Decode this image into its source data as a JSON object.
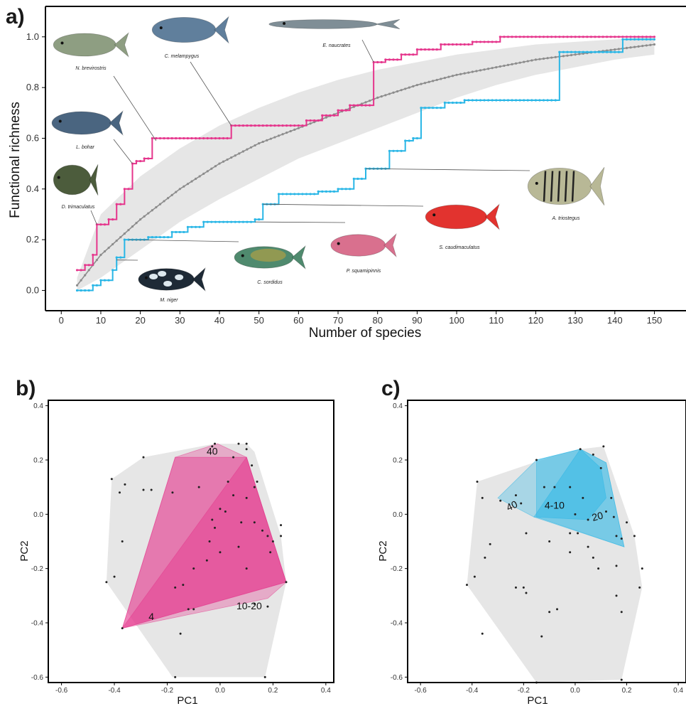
{
  "colors": {
    "pink": "#e5358c",
    "blue": "#29b6e6",
    "gray_line": "#8c8c8c",
    "envelope": "#e6e6e6",
    "hull_gray": "#e6e6e6"
  },
  "panel_labels": {
    "a": "a)",
    "b": "b)",
    "c": "c)"
  },
  "chart_data": [
    {
      "panel": "a",
      "type": "line",
      "xlabel": "Number of species",
      "ylabel": "Functional richness",
      "xlim": [
        -4,
        158
      ],
      "ylim": [
        -0.08,
        1.12
      ],
      "xticks": [
        0,
        10,
        20,
        30,
        40,
        50,
        60,
        70,
        80,
        90,
        100,
        110,
        120,
        130,
        140,
        150
      ],
      "yticks": [
        "0.0",
        "0.2",
        "0.4",
        "0.6",
        "0.8",
        "1.0"
      ],
      "series": [
        {
          "color": "#e5358c",
          "step_points": [
            [
              4,
              0.08
            ],
            [
              6,
              0.1
            ],
            [
              8,
              0.14
            ],
            [
              9,
              0.26
            ],
            [
              12,
              0.28
            ],
            [
              14,
              0.34
            ],
            [
              16,
              0.4
            ],
            [
              18,
              0.5
            ],
            [
              19,
              0.51
            ],
            [
              21,
              0.52
            ],
            [
              23,
              0.6
            ],
            [
              43,
              0.65
            ],
            [
              62,
              0.67
            ],
            [
              66,
              0.69
            ],
            [
              70,
              0.71
            ],
            [
              73,
              0.73
            ],
            [
              79,
              0.9
            ],
            [
              82,
              0.91
            ],
            [
              86,
              0.93
            ],
            [
              90,
              0.95
            ],
            [
              96,
              0.97
            ],
            [
              104,
              0.98
            ],
            [
              111,
              1.0
            ],
            [
              150,
              1.0
            ]
          ]
        },
        {
          "color": "#29b6e6",
          "step_points": [
            [
              4,
              0.0
            ],
            [
              8,
              0.02
            ],
            [
              10,
              0.04
            ],
            [
              13,
              0.08
            ],
            [
              14,
              0.13
            ],
            [
              16,
              0.2
            ],
            [
              22,
              0.21
            ],
            [
              28,
              0.23
            ],
            [
              32,
              0.25
            ],
            [
              36,
              0.27
            ],
            [
              49,
              0.28
            ],
            [
              51,
              0.34
            ],
            [
              55,
              0.38
            ],
            [
              65,
              0.39
            ],
            [
              70,
              0.4
            ],
            [
              74,
              0.44
            ],
            [
              77,
              0.48
            ],
            [
              83,
              0.55
            ],
            [
              87,
              0.59
            ],
            [
              89,
              0.6
            ],
            [
              91,
              0.72
            ],
            [
              97,
              0.74
            ],
            [
              102,
              0.75
            ],
            [
              126,
              0.94
            ],
            [
              142,
              0.99
            ],
            [
              150,
              0.99
            ]
          ]
        },
        {
          "color": "#8c8c8c",
          "curve_points": [
            [
              4,
              0.02
            ],
            [
              10,
              0.14
            ],
            [
              20,
              0.28
            ],
            [
              30,
              0.4
            ],
            [
              40,
              0.5
            ],
            [
              50,
              0.58
            ],
            [
              60,
              0.64
            ],
            [
              70,
              0.7
            ],
            [
              80,
              0.76
            ],
            [
              90,
              0.81
            ],
            [
              100,
              0.85
            ],
            [
              110,
              0.88
            ],
            [
              120,
              0.91
            ],
            [
              130,
              0.93
            ],
            [
              140,
              0.95
            ],
            [
              150,
              0.97
            ]
          ],
          "envelope_lower": [
            [
              4,
              0.0
            ],
            [
              10,
              0.05
            ],
            [
              20,
              0.16
            ],
            [
              30,
              0.27
            ],
            [
              40,
              0.36
            ],
            [
              50,
              0.44
            ],
            [
              60,
              0.52
            ],
            [
              70,
              0.58
            ],
            [
              80,
              0.64
            ],
            [
              90,
              0.7
            ],
            [
              100,
              0.76
            ],
            [
              110,
              0.81
            ],
            [
              120,
              0.85
            ],
            [
              130,
              0.88
            ],
            [
              140,
              0.91
            ],
            [
              150,
              0.93
            ]
          ],
          "envelope_upper": [
            [
              4,
              0.05
            ],
            [
              10,
              0.3
            ],
            [
              20,
              0.45
            ],
            [
              30,
              0.56
            ],
            [
              40,
              0.65
            ],
            [
              50,
              0.72
            ],
            [
              60,
              0.78
            ],
            [
              70,
              0.83
            ],
            [
              80,
              0.87
            ],
            [
              90,
              0.9
            ],
            [
              100,
              0.93
            ],
            [
              110,
              0.95
            ],
            [
              120,
              0.97
            ],
            [
              130,
              0.98
            ],
            [
              140,
              0.99
            ],
            [
              150,
              1.0
            ]
          ]
        }
      ],
      "annotations": [
        {
          "name": "N. brevirostris",
          "fish": "n-brevirostris",
          "color": "#8e9e82",
          "target": [
            24,
            0.59
          ]
        },
        {
          "name": "C. melampygus",
          "fish": "c-melampygus",
          "color": "#607f9c",
          "target": [
            43,
            0.65
          ]
        },
        {
          "name": "E. naucrates",
          "fish": "e-naucrates",
          "color": "#7f8e96",
          "target": [
            79,
            0.9
          ]
        },
        {
          "name": "L. bohar",
          "fish": "l-bohar",
          "color": "#4a6580",
          "target": [
            18,
            0.5
          ]
        },
        {
          "name": "D. trimaculatus",
          "fish": "d-trimaculatus",
          "color": "#4c5c3c",
          "target": [
            9,
            0.26
          ]
        },
        {
          "name": "M. niger",
          "fish": "m-niger",
          "color": "#1e2a36",
          "target": [
            14,
            0.12
          ]
        },
        {
          "name": "C. sordidus",
          "fish": "c-sordidus",
          "color": "#4f8a6e",
          "target": [
            17,
            0.2
          ]
        },
        {
          "name": "P. squamipinnis",
          "fish": "p-squamipinnis",
          "color": "#d9708e",
          "target": [
            49,
            0.27
          ]
        },
        {
          "name": "S. caudimaculatus",
          "fish": "s-caudimaculatus",
          "color": "#e2332f",
          "target": [
            51,
            0.34
          ]
        },
        {
          "name": "A. triostegus",
          "fish": "a-triostegus",
          "color": "#b8b896",
          "target": [
            77,
            0.48
          ]
        }
      ]
    },
    {
      "panel": "b",
      "type": "scatter",
      "xlabel": "PC1",
      "ylabel": "PC2",
      "xlim": [
        -0.65,
        0.43
      ],
      "ylim": [
        -0.62,
        0.42
      ],
      "xticks": [
        "-0.6",
        "-0.4",
        "-0.2",
        "0.0",
        "0.2",
        "0.4"
      ],
      "yticks": [
        "-0.6",
        "-0.4",
        "-0.2",
        "0.0",
        "0.2",
        "0.4"
      ],
      "outer_hull": [
        [
          -0.41,
          0.13
        ],
        [
          -0.29,
          0.21
        ],
        [
          -0.02,
          0.26
        ],
        [
          0.1,
          0.26
        ],
        [
          0.13,
          0.23
        ],
        [
          0.23,
          -0.08
        ],
        [
          0.25,
          -0.25
        ],
        [
          0.17,
          -0.6
        ],
        [
          -0.18,
          -0.6
        ],
        [
          -0.43,
          -0.25
        ]
      ],
      "hulls": [
        {
          "label": "40",
          "opacity": 0.55,
          "vertices": [
            [
              -0.37,
              -0.42
            ],
            [
              -0.17,
              0.21
            ],
            [
              -0.01,
              0.26
            ],
            [
              0.1,
              0.21
            ],
            [
              0.25,
              -0.25
            ],
            [
              0.18,
              -0.31
            ]
          ]
        },
        {
          "label": "10-20",
          "opacity": 0.7,
          "vertices": [
            [
              -0.37,
              -0.42
            ],
            [
              -0.17,
              0.21
            ],
            [
              0.1,
              0.21
            ],
            [
              0.25,
              -0.25
            ]
          ]
        },
        {
          "label": "4",
          "opacity": 0.75,
          "vertices": [
            [
              -0.37,
              -0.42
            ],
            [
              0.1,
              0.21
            ],
            [
              0.25,
              -0.25
            ]
          ]
        }
      ],
      "points": [
        [
          -0.41,
          0.13
        ],
        [
          -0.38,
          0.08
        ],
        [
          -0.36,
          0.11
        ],
        [
          -0.29,
          0.21
        ],
        [
          -0.29,
          0.09
        ],
        [
          -0.37,
          -0.1
        ],
        [
          -0.4,
          -0.23
        ],
        [
          -0.43,
          -0.25
        ],
        [
          -0.26,
          0.09
        ],
        [
          -0.18,
          0.08
        ],
        [
          -0.02,
          0.26
        ],
        [
          0.07,
          0.26
        ],
        [
          0.1,
          0.26
        ],
        [
          0.1,
          0.24
        ],
        [
          -0.03,
          0.25
        ],
        [
          0.05,
          0.21
        ],
        [
          0.12,
          0.18
        ],
        [
          0.14,
          0.12
        ],
        [
          0.13,
          0.1
        ],
        [
          0.1,
          0.06
        ],
        [
          0.05,
          0.07
        ],
        [
          0.02,
          0.01
        ],
        [
          -0.03,
          -0.02
        ],
        [
          -0.02,
          -0.05
        ],
        [
          -0.04,
          -0.1
        ],
        [
          0.08,
          -0.03
        ],
        [
          0.13,
          -0.03
        ],
        [
          0.16,
          -0.06
        ],
        [
          0.18,
          -0.08
        ],
        [
          0.2,
          -0.1
        ],
        [
          0.19,
          -0.14
        ],
        [
          0.23,
          -0.08
        ],
        [
          0.23,
          -0.04
        ],
        [
          0.1,
          -0.2
        ],
        [
          0.0,
          -0.14
        ],
        [
          -0.05,
          -0.17
        ],
        [
          -0.1,
          -0.2
        ],
        [
          -0.14,
          -0.26
        ],
        [
          -0.17,
          -0.27
        ],
        [
          -0.12,
          -0.35
        ],
        [
          -0.1,
          -0.35
        ],
        [
          -0.15,
          -0.44
        ],
        [
          0.18,
          -0.34
        ],
        [
          0.13,
          -0.33
        ],
        [
          0.25,
          -0.25
        ],
        [
          -0.37,
          -0.42
        ],
        [
          -0.17,
          -0.6
        ],
        [
          0.17,
          -0.6
        ],
        [
          0.0,
          0.02
        ],
        [
          0.07,
          -0.12
        ],
        [
          -0.08,
          0.1
        ],
        [
          0.03,
          0.12
        ]
      ]
    },
    {
      "panel": "c",
      "type": "scatter",
      "xlabel": "PC1",
      "ylabel": "PC2",
      "xlim": [
        -0.65,
        0.43
      ],
      "ylim": [
        -0.62,
        0.42
      ],
      "xticks": [
        "-0.6",
        "-0.4",
        "-0.2",
        "0.0",
        "0.2",
        "0.4"
      ],
      "yticks": [
        "-0.6",
        "-0.4",
        "-0.2",
        "0.0",
        "0.2",
        "0.4"
      ],
      "outer_hull": [
        [
          -0.38,
          0.12
        ],
        [
          -0.1,
          0.21
        ],
        [
          0.02,
          0.24
        ],
        [
          0.11,
          0.25
        ],
        [
          0.23,
          -0.08
        ],
        [
          0.26,
          -0.27
        ],
        [
          0.18,
          -0.61
        ],
        [
          -0.15,
          -0.62
        ],
        [
          -0.42,
          -0.26
        ]
      ],
      "hulls": [
        {
          "label": "40",
          "opacity": 0.55,
          "vertices": [
            [
              -0.3,
              0.06
            ],
            [
              -0.15,
              0.2
            ],
            [
              0.02,
              0.24
            ],
            [
              0.12,
              0.19
            ],
            [
              0.19,
              -0.12
            ],
            [
              -0.16,
              -0.01
            ]
          ]
        },
        {
          "label": "20",
          "opacity": 0.65,
          "vertices": [
            [
              -0.15,
              -0.01
            ],
            [
              -0.15,
              0.2
            ],
            [
              0.02,
              0.24
            ],
            [
              0.12,
              0.19
            ],
            [
              0.19,
              -0.12
            ]
          ]
        },
        {
          "label": "4-10",
          "opacity": 0.75,
          "vertices": [
            [
              -0.16,
              -0.01
            ],
            [
              0.02,
              0.24
            ],
            [
              0.1,
              0.17
            ],
            [
              0.12,
              0.06
            ],
            [
              0.05,
              -0.02
            ]
          ]
        }
      ],
      "points": [
        [
          -0.38,
          0.12
        ],
        [
          -0.36,
          0.06
        ],
        [
          -0.29,
          0.05
        ],
        [
          -0.23,
          0.07
        ],
        [
          -0.21,
          0.04
        ],
        [
          -0.15,
          0.2
        ],
        [
          -0.12,
          0.1
        ],
        [
          -0.08,
          0.1
        ],
        [
          0.02,
          0.24
        ],
        [
          0.07,
          0.22
        ],
        [
          0.11,
          0.25
        ],
        [
          0.1,
          0.17
        ],
        [
          0.14,
          0.06
        ],
        [
          0.12,
          0.01
        ],
        [
          0.15,
          -0.01
        ],
        [
          0.16,
          -0.08
        ],
        [
          0.18,
          -0.09
        ],
        [
          0.23,
          -0.08
        ],
        [
          0.2,
          -0.03
        ],
        [
          0.05,
          -0.02
        ],
        [
          0.01,
          -0.07
        ],
        [
          -0.02,
          -0.07
        ],
        [
          -0.1,
          -0.1
        ],
        [
          -0.19,
          -0.07
        ],
        [
          -0.33,
          -0.11
        ],
        [
          -0.35,
          -0.16
        ],
        [
          -0.02,
          -0.14
        ],
        [
          0.05,
          -0.12
        ],
        [
          0.07,
          -0.16
        ],
        [
          0.09,
          -0.2
        ],
        [
          0.16,
          -0.19
        ],
        [
          0.16,
          -0.3
        ],
        [
          0.18,
          -0.36
        ],
        [
          0.25,
          -0.27
        ],
        [
          0.26,
          -0.2
        ],
        [
          -0.39,
          -0.23
        ],
        [
          -0.42,
          -0.26
        ],
        [
          -0.36,
          -0.44
        ],
        [
          -0.23,
          -0.27
        ],
        [
          -0.2,
          -0.27
        ],
        [
          -0.19,
          -0.29
        ],
        [
          -0.1,
          -0.36
        ],
        [
          -0.07,
          -0.35
        ],
        [
          -0.13,
          -0.45
        ],
        [
          -0.15,
          -0.62
        ],
        [
          0.18,
          -0.61
        ],
        [
          0.0,
          0.0
        ],
        [
          -0.02,
          0.1
        ],
        [
          0.03,
          0.06
        ]
      ]
    }
  ]
}
